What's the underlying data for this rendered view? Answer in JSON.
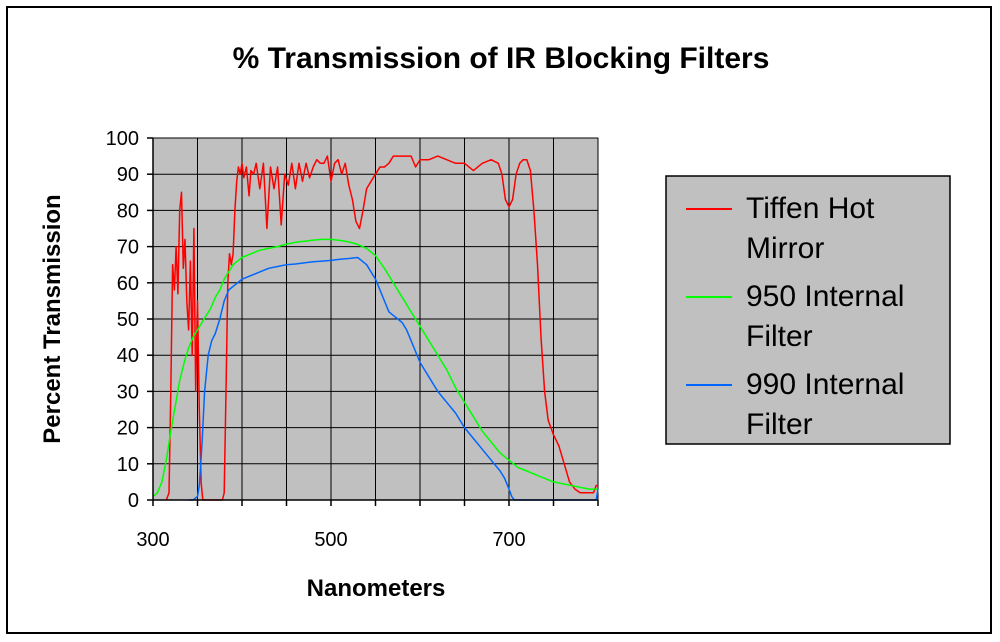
{
  "chart_data": {
    "type": "line",
    "title": "% Transmission of IR Blocking Filters",
    "xlabel": "Nanometers",
    "ylabel": "Percent Transmission",
    "xlim": [
      300,
      800
    ],
    "ylim": [
      0,
      100
    ],
    "x_ticks": [
      300,
      500,
      700
    ],
    "y_ticks": [
      0,
      10,
      20,
      30,
      40,
      50,
      60,
      70,
      80,
      90,
      100
    ],
    "x_tick_labels": [
      "300",
      "500",
      "700"
    ],
    "y_tick_labels": [
      "0",
      "10",
      "20",
      "30",
      "40",
      "50",
      "60",
      "70",
      "80",
      "90",
      "100"
    ],
    "grid": true,
    "plot_background": "#c0c0c0",
    "legend_position": "right",
    "series": [
      {
        "name": "Tiffen Hot Mirror",
        "legend_lines": [
          "Tiffen Hot",
          "Mirror"
        ],
        "color": "#ff0000",
        "points": [
          [
            315,
            0
          ],
          [
            318,
            2
          ],
          [
            320,
            30
          ],
          [
            322,
            65
          ],
          [
            324,
            58
          ],
          [
            326,
            70
          ],
          [
            328,
            57
          ],
          [
            330,
            80
          ],
          [
            332,
            85
          ],
          [
            334,
            64
          ],
          [
            336,
            72
          ],
          [
            338,
            55
          ],
          [
            340,
            47
          ],
          [
            342,
            66
          ],
          [
            344,
            40
          ],
          [
            346,
            75
          ],
          [
            348,
            30
          ],
          [
            350,
            55
          ],
          [
            352,
            25
          ],
          [
            354,
            5
          ],
          [
            356,
            0
          ],
          [
            360,
            0
          ],
          [
            375,
            0
          ],
          [
            378,
            0
          ],
          [
            380,
            2
          ],
          [
            382,
            30
          ],
          [
            384,
            60
          ],
          [
            386,
            68
          ],
          [
            388,
            65
          ],
          [
            390,
            68
          ],
          [
            392,
            80
          ],
          [
            394,
            88
          ],
          [
            396,
            92
          ],
          [
            398,
            90
          ],
          [
            400,
            93
          ],
          [
            402,
            89
          ],
          [
            405,
            92
          ],
          [
            408,
            84
          ],
          [
            410,
            91
          ],
          [
            413,
            90
          ],
          [
            416,
            93
          ],
          [
            420,
            86
          ],
          [
            424,
            93
          ],
          [
            428,
            75
          ],
          [
            432,
            92
          ],
          [
            436,
            86
          ],
          [
            440,
            92
          ],
          [
            444,
            76
          ],
          [
            448,
            90
          ],
          [
            452,
            87
          ],
          [
            456,
            93
          ],
          [
            460,
            86
          ],
          [
            464,
            93
          ],
          [
            468,
            88
          ],
          [
            472,
            93
          ],
          [
            476,
            89
          ],
          [
            480,
            92
          ],
          [
            484,
            94
          ],
          [
            488,
            93
          ],
          [
            492,
            93
          ],
          [
            496,
            95
          ],
          [
            500,
            88
          ],
          [
            504,
            93
          ],
          [
            508,
            94
          ],
          [
            512,
            90
          ],
          [
            516,
            93
          ],
          [
            520,
            87
          ],
          [
            524,
            83
          ],
          [
            528,
            77
          ],
          [
            532,
            75
          ],
          [
            536,
            80
          ],
          [
            540,
            86
          ],
          [
            545,
            88
          ],
          [
            550,
            90
          ],
          [
            555,
            92
          ],
          [
            560,
            92
          ],
          [
            565,
            93
          ],
          [
            570,
            95
          ],
          [
            580,
            95
          ],
          [
            590,
            95
          ],
          [
            595,
            92
          ],
          [
            600,
            94
          ],
          [
            610,
            94
          ],
          [
            620,
            95
          ],
          [
            630,
            94
          ],
          [
            640,
            93
          ],
          [
            650,
            93
          ],
          [
            660,
            91
          ],
          [
            670,
            93
          ],
          [
            680,
            94
          ],
          [
            688,
            93
          ],
          [
            692,
            90
          ],
          [
            696,
            83
          ],
          [
            700,
            81
          ],
          [
            704,
            83
          ],
          [
            708,
            90
          ],
          [
            712,
            93
          ],
          [
            716,
            94
          ],
          [
            720,
            94
          ],
          [
            724,
            91
          ],
          [
            728,
            80
          ],
          [
            732,
            65
          ],
          [
            736,
            45
          ],
          [
            740,
            30
          ],
          [
            744,
            22
          ],
          [
            750,
            18
          ],
          [
            756,
            15
          ],
          [
            762,
            10
          ],
          [
            768,
            5
          ],
          [
            774,
            3
          ],
          [
            780,
            2
          ],
          [
            790,
            2
          ],
          [
            795,
            2
          ],
          [
            798,
            4
          ],
          [
            800,
            4
          ]
        ]
      },
      {
        "name": "950 Internal Filter",
        "legend_lines": [
          "950 Internal",
          "Filter"
        ],
        "color": "#00ff00",
        "points": [
          [
            300,
            1
          ],
          [
            305,
            2
          ],
          [
            310,
            5
          ],
          [
            315,
            11
          ],
          [
            320,
            19
          ],
          [
            325,
            26
          ],
          [
            330,
            33
          ],
          [
            335,
            38
          ],
          [
            340,
            42
          ],
          [
            345,
            45
          ],
          [
            350,
            47
          ],
          [
            355,
            49
          ],
          [
            360,
            51
          ],
          [
            365,
            53
          ],
          [
            370,
            56
          ],
          [
            375,
            58
          ],
          [
            380,
            61
          ],
          [
            385,
            63
          ],
          [
            390,
            65
          ],
          [
            395,
            66
          ],
          [
            400,
            67
          ],
          [
            410,
            68
          ],
          [
            420,
            69
          ],
          [
            430,
            69.5
          ],
          [
            440,
            70
          ],
          [
            450,
            70.7
          ],
          [
            460,
            71.2
          ],
          [
            470,
            71.5
          ],
          [
            480,
            71.8
          ],
          [
            490,
            72
          ],
          [
            500,
            72
          ],
          [
            510,
            71.7
          ],
          [
            520,
            71.3
          ],
          [
            530,
            70.6
          ],
          [
            540,
            69.5
          ],
          [
            550,
            67.5
          ],
          [
            560,
            64
          ],
          [
            570,
            60
          ],
          [
            580,
            56
          ],
          [
            590,
            52
          ],
          [
            600,
            48
          ],
          [
            610,
            44
          ],
          [
            620,
            40
          ],
          [
            630,
            36
          ],
          [
            640,
            31
          ],
          [
            650,
            27
          ],
          [
            660,
            23
          ],
          [
            670,
            19
          ],
          [
            680,
            16
          ],
          [
            690,
            13
          ],
          [
            700,
            11
          ],
          [
            710,
            9
          ],
          [
            720,
            8
          ],
          [
            730,
            7
          ],
          [
            740,
            6
          ],
          [
            750,
            5
          ],
          [
            760,
            4.5
          ],
          [
            770,
            4
          ],
          [
            780,
            3.5
          ],
          [
            790,
            3
          ],
          [
            800,
            3
          ]
        ]
      },
      {
        "name": "990 Internal Filter",
        "legend_lines": [
          "990 Internal",
          "Filter"
        ],
        "color": "#0066ff",
        "points": [
          [
            340,
            0
          ],
          [
            345,
            0
          ],
          [
            350,
            1
          ],
          [
            352,
            4
          ],
          [
            355,
            15
          ],
          [
            358,
            30
          ],
          [
            362,
            40
          ],
          [
            366,
            44
          ],
          [
            370,
            46
          ],
          [
            375,
            50
          ],
          [
            380,
            55
          ],
          [
            385,
            58
          ],
          [
            390,
            59
          ],
          [
            395,
            60
          ],
          [
            400,
            61
          ],
          [
            410,
            62
          ],
          [
            420,
            63
          ],
          [
            430,
            64
          ],
          [
            440,
            64.5
          ],
          [
            450,
            65
          ],
          [
            460,
            65.2
          ],
          [
            470,
            65.5
          ],
          [
            480,
            65.8
          ],
          [
            490,
            66
          ],
          [
            500,
            66.2
          ],
          [
            510,
            66.5
          ],
          [
            520,
            66.7
          ],
          [
            530,
            67
          ],
          [
            535,
            66
          ],
          [
            540,
            65
          ],
          [
            545,
            63
          ],
          [
            550,
            61
          ],
          [
            555,
            58
          ],
          [
            560,
            55
          ],
          [
            565,
            52
          ],
          [
            570,
            51
          ],
          [
            575,
            50
          ],
          [
            580,
            49
          ],
          [
            585,
            47
          ],
          [
            590,
            44
          ],
          [
            595,
            41
          ],
          [
            600,
            38
          ],
          [
            610,
            34
          ],
          [
            620,
            30
          ],
          [
            630,
            27
          ],
          [
            640,
            24
          ],
          [
            650,
            20
          ],
          [
            660,
            17
          ],
          [
            670,
            14
          ],
          [
            680,
            11
          ],
          [
            690,
            8
          ],
          [
            695,
            6
          ],
          [
            700,
            3
          ],
          [
            703,
            1
          ],
          [
            706,
            0
          ],
          [
            710,
            0
          ],
          [
            798,
            0
          ],
          [
            800,
            3
          ]
        ]
      }
    ]
  }
}
